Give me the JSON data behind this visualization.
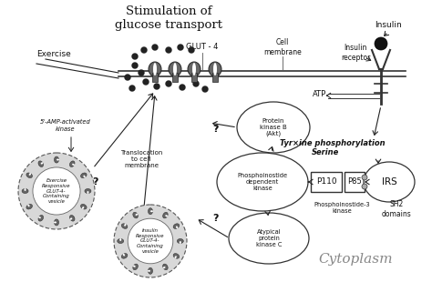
{
  "bg_color": "#f0f0f0",
  "border_color": "#333333",
  "text_color": "#111111",
  "labels": {
    "exercise": "Exercise",
    "stimulation": "Stimulation of\nglucose transport",
    "glut4": "GLUT - 4",
    "cell_membrane": "Cell\nmembrane",
    "insulin_receptor": "Insulin\nreceptor",
    "insulin": "Insulin",
    "atp": "ATP",
    "amp_kinase": "5'-AMP-activated\nkinase",
    "translocation": "Translocation\nto cell\nmembrane",
    "protein_kinase_b": "Protein\nkinase B\n(Akt)",
    "phosphoinostide_dep": "Phosphoinostide\ndependent\nkinase",
    "atypical_protein": "Atypical\nprotein\nkinase C",
    "p110": "P110",
    "p85": "P85",
    "irs": "IRS",
    "phosphoinostide3": "Phosphoinostide-3\nkinase",
    "sh2": "SH2\ndomains",
    "tyrosine": "Tyr×ine phosphorylation",
    "serine": "Serine",
    "exercise_vesicle": "Exercise\nResponsive\nGLUT-4-\nContaining\nvesicle",
    "insulin_vesicle": "Insulin\nResponsive\nGLUT-4-\nContaining\nvesicle",
    "cytoplasm": "Cytoplasm",
    "question": "?"
  }
}
